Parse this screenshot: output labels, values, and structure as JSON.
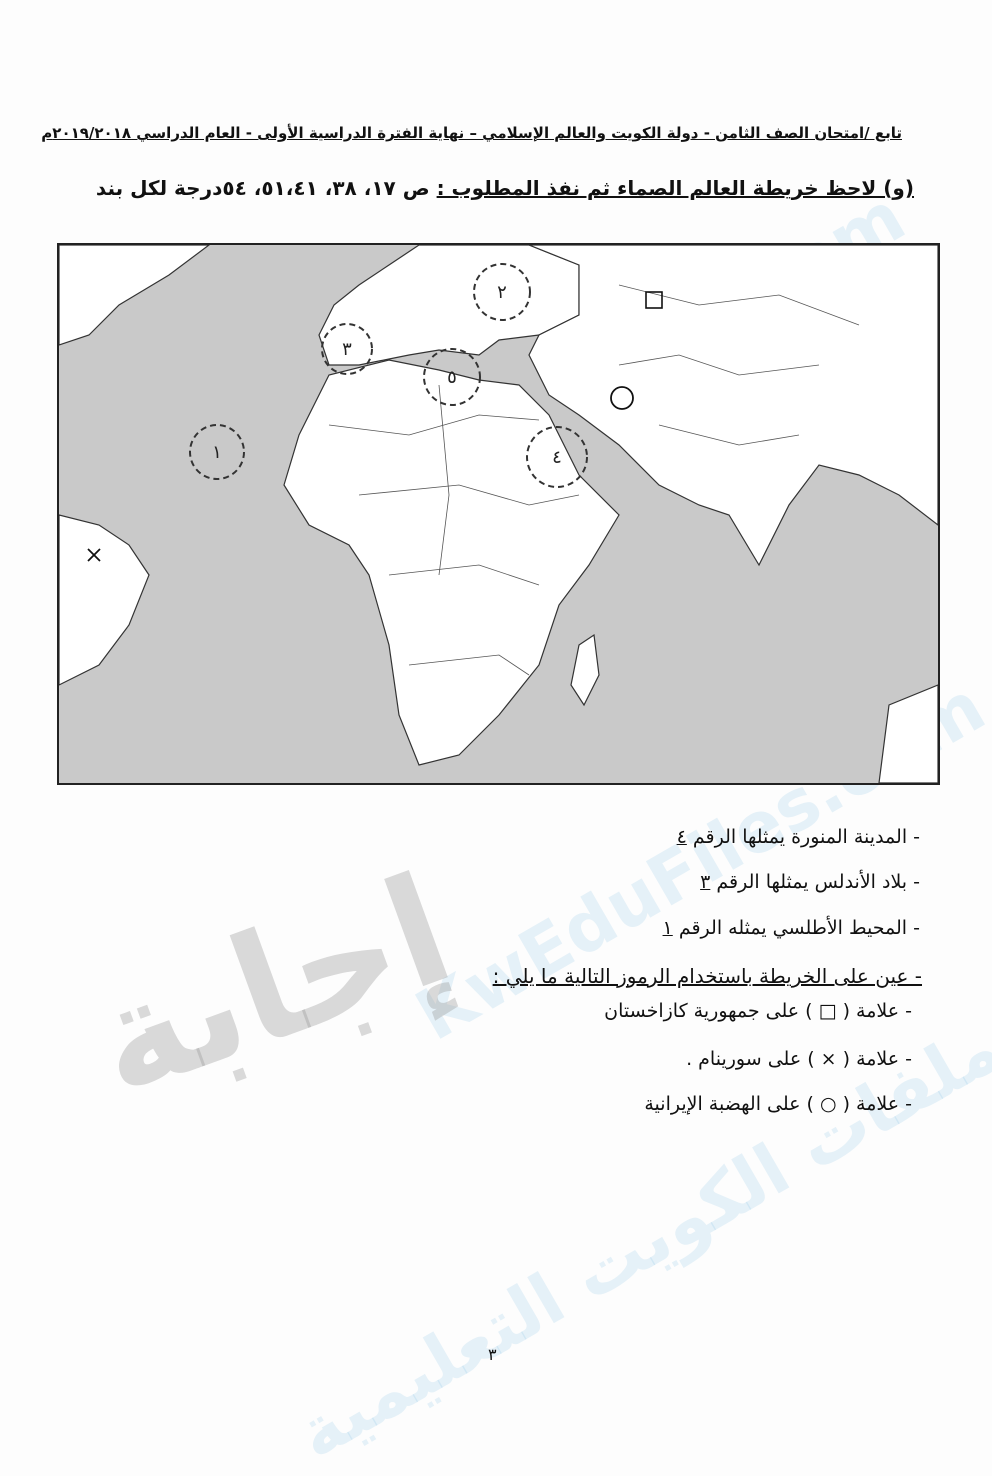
{
  "header": "تابع /امتحان الصف الثامن - دولة الكويت والعالم الإسلامي – نهاية الفترة الدراسية الأولى - العام الدراسي ٢٠١٩/٢٠١٨م",
  "instruction": {
    "main": "(و) لاحظ خريطة العالم الصماء ثم نفذ المطلوب :",
    "pages": "ص ١٧، ٣٨، ٥١،٤١، ٥٤درجة لكل بند"
  },
  "map": {
    "labels": [
      "١",
      "٢",
      "٣",
      "٤",
      "٥"
    ],
    "symbols": [
      "square",
      "x",
      "circle"
    ],
    "ocean_color": "#c9c9c9",
    "land_color": "#ffffff"
  },
  "items": [
    {
      "text": "- المدينة المنورة يمثلها الرقم",
      "answer": "٤"
    },
    {
      "text": "- بلاد الأندلس يمثلها الرقم",
      "answer": "٣"
    },
    {
      "text": "- المحيط الأطلسي يمثله الرقم",
      "answer": "١"
    }
  ],
  "task_title": "- عين على الخريطة باستخدام الرموز التالية  ما يلي :",
  "tasks": [
    "-  علامة (  □  ) على جمهورية كازاخستان",
    "- علامة (  ×  ) على سورينام .",
    "- علامة (  ○  ) على الهضبة الإيرانية"
  ],
  "page_number": "٣",
  "watermarks": [
    "ملفات الكويت التعليمية",
    "KwEduFiles.com"
  ],
  "stamp": "إجابة"
}
